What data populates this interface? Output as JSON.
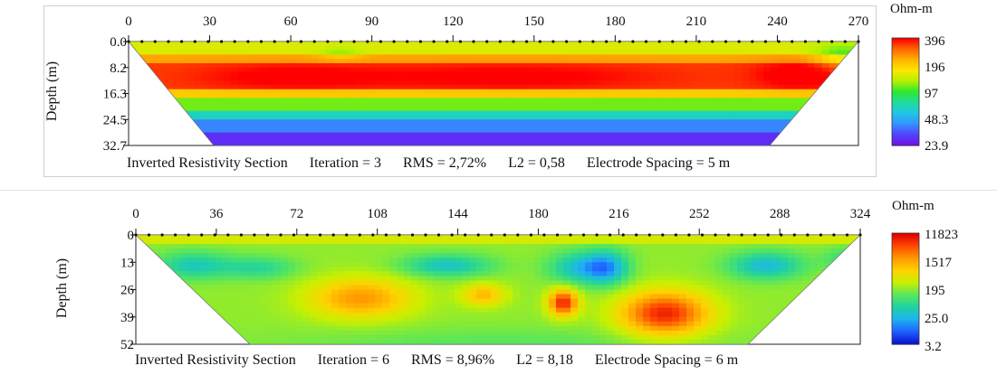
{
  "chart_data": [
    {
      "type": "heatmap",
      "title": "",
      "ylabel": "Depth (m)",
      "x_ticks": [
        0,
        30,
        60,
        90,
        120,
        150,
        180,
        210,
        240,
        270
      ],
      "y_ticks": [
        "0.0",
        "8.2",
        "16.3",
        "24.5",
        "32.7"
      ],
      "xlim": [
        0,
        270
      ],
      "ylim": [
        0,
        32.7
      ],
      "colorbar": {
        "unit": "Ohm-m",
        "labels": [
          "396",
          "196",
          "97",
          "48.3",
          "23.9"
        ],
        "colors": [
          "#ff0000",
          "#ff6a00",
          "#ffb400",
          "#ffe600",
          "#b4f000",
          "#2ee82e",
          "#1fdc9a",
          "#1ec8e6",
          "#3296ff",
          "#5046ff",
          "#6e14e6"
        ]
      },
      "caption": {
        "section": "Inverted Resistivity Section",
        "iteration": "Iteration = 3",
        "rms": "RMS = 2,72%",
        "l2": "L2 = 0,58",
        "spacing": "Electrode Spacing = 5 m"
      }
    },
    {
      "type": "heatmap",
      "title": "",
      "ylabel": "Depth (m)",
      "x_ticks": [
        0,
        36,
        72,
        108,
        144,
        180,
        216,
        252,
        288,
        324
      ],
      "y_ticks": [
        "0",
        "13",
        "26",
        "39",
        "52"
      ],
      "xlim": [
        0,
        324
      ],
      "ylim": [
        0,
        52
      ],
      "colorbar": {
        "unit": "Ohm-m",
        "labels": [
          "11823",
          "1517",
          "195",
          "25.0",
          "3.2"
        ],
        "colors": [
          "#e00000",
          "#ff4a00",
          "#ff9a00",
          "#ffd200",
          "#c8f000",
          "#5ae65a",
          "#20d2a0",
          "#1eb4f0",
          "#1e64ff",
          "#0a14d2"
        ]
      },
      "caption": {
        "section": "Inverted Resistivity Section",
        "iteration": "Iteration = 6",
        "rms": "RMS = 8,96%",
        "l2": "L2 = 8,18",
        "spacing": "Electrode Spacing = 6 m"
      }
    }
  ]
}
